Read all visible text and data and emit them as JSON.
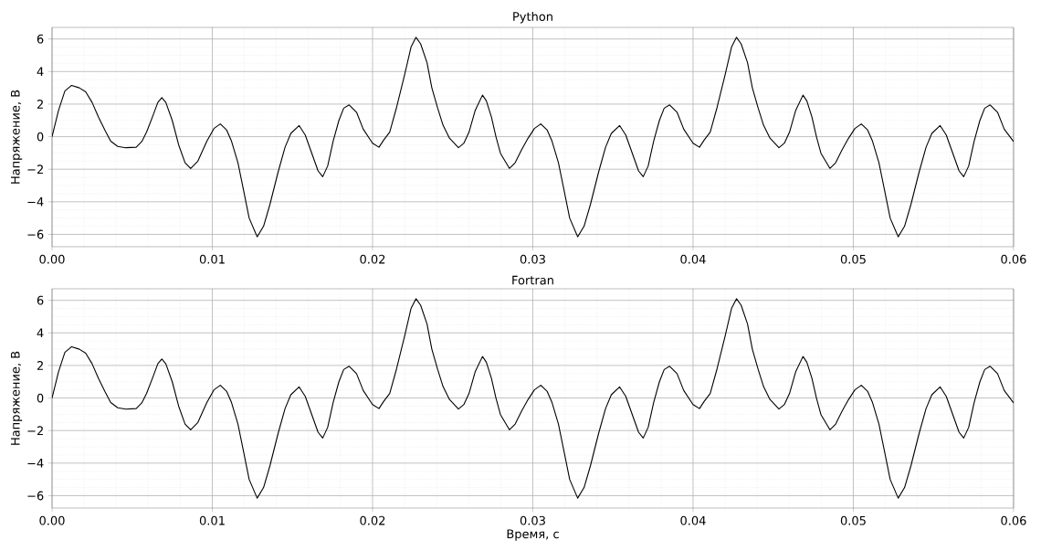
{
  "chart_data": [
    {
      "type": "line",
      "title": "Python",
      "ylabel": "Напряжение, В",
      "grid": true,
      "xlim": [
        0,
        0.06
      ],
      "ylim": [
        -6.76,
        6.71
      ],
      "xticks": [
        {
          "value": 0,
          "label": "0.00"
        },
        {
          "value": 0.01,
          "label": "0.01"
        },
        {
          "value": 0.02,
          "label": "0.02"
        },
        {
          "value": 0.03,
          "label": "0.03"
        },
        {
          "value": 0.04,
          "label": "0.04"
        },
        {
          "value": 0.05,
          "label": "0.05"
        },
        {
          "value": 0.06,
          "label": "0.06"
        }
      ],
      "yticks": [
        {
          "value": -6,
          "label": "−6"
        },
        {
          "value": -4,
          "label": "−4"
        },
        {
          "value": -2,
          "label": "−2"
        },
        0,
        2,
        4,
        6
      ],
      "series": [
        {
          "color": "#000000",
          "x": [
            0,
            0.0004,
            0.0008,
            0.00122,
            0.0017,
            0.0021,
            0.0025,
            0.0029,
            0.0033,
            0.00366,
            0.0041,
            0.0046,
            0.00525,
            0.0056,
            0.0059,
            0.0063,
            0.0066,
            0.00685,
            0.0071,
            0.0075,
            0.0079,
            0.0083,
            0.00865,
            0.0091,
            0.00966,
            0.0101,
            0.0105,
            0.0109,
            0.0112,
            0.0116,
            0.0119,
            0.0123,
            0.0128,
            0.0132,
            0.0136,
            0.0141,
            0.01454,
            0.0149,
            0.01542,
            0.0158,
            0.0162,
            0.0166,
            0.01689,
            0.0172,
            0.01754,
            0.0179,
            0.0182,
            0.01854,
            0.019,
            0.01942,
            0.02,
            0.0204,
            0.0207,
            0.02107,
            0.0215,
            0.022,
            0.0224,
            0.02271,
            0.023,
            0.0234,
            0.0237,
            0.02406,
            0.0244,
            0.0248,
            0.02536,
            0.0257,
            0.02602,
            0.0264,
            0.02686,
            0.0271,
            0.02742,
            0.0277,
            0.02798,
            0.02854,
            0.0289,
            0.02929,
            0.0297,
            0.0301,
            0.0305,
            0.0309,
            0.0312,
            0.0316,
            0.0319,
            0.0323,
            0.0328,
            0.0332,
            0.0336,
            0.0341,
            0.03454,
            0.0349,
            0.03542,
            0.0358,
            0.0362,
            0.0366,
            0.03689,
            0.0372,
            0.03754,
            0.0379,
            0.0382,
            0.03854,
            0.039,
            0.03942,
            0.04,
            0.0404,
            0.0407,
            0.04107,
            0.0415,
            0.042,
            0.0424,
            0.04271,
            0.043,
            0.0434,
            0.0437,
            0.04406,
            0.0444,
            0.0448,
            0.04536,
            0.0457,
            0.04602,
            0.0464,
            0.04686,
            0.0471,
            0.04742,
            0.0477,
            0.04798,
            0.04854,
            0.0489,
            0.04929,
            0.0497,
            0.0501,
            0.0505,
            0.0509,
            0.0512,
            0.0516,
            0.0519,
            0.0523,
            0.0528,
            0.0532,
            0.0536,
            0.0541,
            0.05454,
            0.0549,
            0.05542,
            0.0558,
            0.0562,
            0.0566,
            0.05689,
            0.0572,
            0.05754,
            0.0579,
            0.0582,
            0.05854,
            0.059,
            0.05942,
            0.06
          ],
          "values": [
            0,
            1.6,
            2.8,
            3.15,
            3.0,
            2.75,
            2.1,
            1.2,
            0.4,
            -0.28,
            -0.6,
            -0.68,
            -0.65,
            -0.3,
            0.28,
            1.3,
            2.1,
            2.4,
            2.1,
            1.0,
            -0.5,
            -1.6,
            -1.95,
            -1.5,
            -0.28,
            0.5,
            0.78,
            0.4,
            -0.28,
            -1.6,
            -3.05,
            -5.0,
            -6.15,
            -5.5,
            -4.15,
            -2.2,
            -0.65,
            0.2,
            0.68,
            0.1,
            -1.0,
            -2.1,
            -2.46,
            -1.8,
            -0.28,
            1.0,
            1.75,
            1.95,
            1.5,
            0.46,
            -0.4,
            -0.65,
            -0.2,
            0.28,
            1.8,
            3.8,
            5.5,
            6.1,
            5.7,
            4.54,
            3.0,
            1.76,
            0.7,
            -0.09,
            -0.68,
            -0.4,
            0.28,
            1.6,
            2.55,
            2.2,
            1.2,
            0.0,
            -1.02,
            -1.95,
            -1.6,
            -0.83,
            -0.1,
            0.5,
            0.78,
            0.4,
            -0.28,
            -1.6,
            -3.05,
            -5.0,
            -6.15,
            -5.5,
            -4.15,
            -2.2,
            -0.65,
            0.2,
            0.68,
            0.1,
            -1.0,
            -2.1,
            -2.46,
            -1.8,
            -0.28,
            1.0,
            1.75,
            1.95,
            1.5,
            0.46,
            -0.4,
            -0.65,
            -0.2,
            0.28,
            1.8,
            3.8,
            5.5,
            6.1,
            5.7,
            4.54,
            3.0,
            1.76,
            0.7,
            -0.09,
            -0.68,
            -0.4,
            0.28,
            1.6,
            2.55,
            2.2,
            1.2,
            0.0,
            -1.02,
            -1.95,
            -1.6,
            -0.83,
            -0.1,
            0.5,
            0.78,
            0.4,
            -0.28,
            -1.6,
            -3.05,
            -5.0,
            -6.15,
            -5.5,
            -4.15,
            -2.2,
            -0.65,
            0.2,
            0.68,
            0.1,
            -1.0,
            -2.1,
            -2.46,
            -1.8,
            -0.28,
            1.0,
            1.75,
            1.95,
            1.5,
            0.46,
            -0.3
          ]
        }
      ]
    },
    {
      "type": "line",
      "title": "Fortran",
      "xlabel": "Время, с",
      "ylabel": "Напряжение, В",
      "grid": true,
      "xlim": [
        0,
        0.06
      ],
      "ylim": [
        -6.76,
        6.71
      ],
      "xticks": [
        {
          "value": 0,
          "label": "0.00"
        },
        {
          "value": 0.01,
          "label": "0.01"
        },
        {
          "value": 0.02,
          "label": "0.02"
        },
        {
          "value": 0.03,
          "label": "0.03"
        },
        {
          "value": 0.04,
          "label": "0.04"
        },
        {
          "value": 0.05,
          "label": "0.05"
        },
        {
          "value": 0.06,
          "label": "0.06"
        }
      ],
      "yticks": [
        {
          "value": -6,
          "label": "−6"
        },
        {
          "value": -4,
          "label": "−4"
        },
        {
          "value": -2,
          "label": "−2"
        },
        0,
        2,
        4,
        6
      ],
      "series": [
        {
          "color": "#000000",
          "x": [
            0,
            0.0004,
            0.0008,
            0.00122,
            0.0017,
            0.0021,
            0.0025,
            0.0029,
            0.0033,
            0.00366,
            0.0041,
            0.0046,
            0.00525,
            0.0056,
            0.0059,
            0.0063,
            0.0066,
            0.00685,
            0.0071,
            0.0075,
            0.0079,
            0.0083,
            0.00865,
            0.0091,
            0.00966,
            0.0101,
            0.0105,
            0.0109,
            0.0112,
            0.0116,
            0.0119,
            0.0123,
            0.0128,
            0.0132,
            0.0136,
            0.0141,
            0.01454,
            0.0149,
            0.01542,
            0.0158,
            0.0162,
            0.0166,
            0.01689,
            0.0172,
            0.01754,
            0.0179,
            0.0182,
            0.01854,
            0.019,
            0.01942,
            0.02,
            0.0204,
            0.0207,
            0.02107,
            0.0215,
            0.022,
            0.0224,
            0.02271,
            0.023,
            0.0234,
            0.0237,
            0.02406,
            0.0244,
            0.0248,
            0.02536,
            0.0257,
            0.02602,
            0.0264,
            0.02686,
            0.0271,
            0.02742,
            0.0277,
            0.02798,
            0.02854,
            0.0289,
            0.02929,
            0.0297,
            0.0301,
            0.0305,
            0.0309,
            0.0312,
            0.0316,
            0.0319,
            0.0323,
            0.0328,
            0.0332,
            0.0336,
            0.0341,
            0.03454,
            0.0349,
            0.03542,
            0.0358,
            0.0362,
            0.0366,
            0.03689,
            0.0372,
            0.03754,
            0.0379,
            0.0382,
            0.03854,
            0.039,
            0.03942,
            0.04,
            0.0404,
            0.0407,
            0.04107,
            0.0415,
            0.042,
            0.0424,
            0.04271,
            0.043,
            0.0434,
            0.0437,
            0.04406,
            0.0444,
            0.0448,
            0.04536,
            0.0457,
            0.04602,
            0.0464,
            0.04686,
            0.0471,
            0.04742,
            0.0477,
            0.04798,
            0.04854,
            0.0489,
            0.04929,
            0.0497,
            0.0501,
            0.0505,
            0.0509,
            0.0512,
            0.0516,
            0.0519,
            0.0523,
            0.0528,
            0.0532,
            0.0536,
            0.0541,
            0.05454,
            0.0549,
            0.05542,
            0.0558,
            0.0562,
            0.0566,
            0.05689,
            0.0572,
            0.05754,
            0.0579,
            0.0582,
            0.05854,
            0.059,
            0.05942,
            0.06
          ],
          "values": [
            0,
            1.6,
            2.8,
            3.15,
            3.0,
            2.75,
            2.1,
            1.2,
            0.4,
            -0.28,
            -0.6,
            -0.68,
            -0.65,
            -0.3,
            0.28,
            1.3,
            2.1,
            2.4,
            2.1,
            1.0,
            -0.5,
            -1.6,
            -1.95,
            -1.5,
            -0.28,
            0.5,
            0.78,
            0.4,
            -0.28,
            -1.6,
            -3.05,
            -5.0,
            -6.15,
            -5.5,
            -4.15,
            -2.2,
            -0.65,
            0.2,
            0.68,
            0.1,
            -1.0,
            -2.1,
            -2.46,
            -1.8,
            -0.28,
            1.0,
            1.75,
            1.95,
            1.5,
            0.46,
            -0.4,
            -0.65,
            -0.2,
            0.28,
            1.8,
            3.8,
            5.5,
            6.1,
            5.7,
            4.54,
            3.0,
            1.76,
            0.7,
            -0.09,
            -0.68,
            -0.4,
            0.28,
            1.6,
            2.55,
            2.2,
            1.2,
            0.0,
            -1.02,
            -1.95,
            -1.6,
            -0.83,
            -0.1,
            0.5,
            0.78,
            0.4,
            -0.28,
            -1.6,
            -3.05,
            -5.0,
            -6.15,
            -5.5,
            -4.15,
            -2.2,
            -0.65,
            0.2,
            0.68,
            0.1,
            -1.0,
            -2.1,
            -2.46,
            -1.8,
            -0.28,
            1.0,
            1.75,
            1.95,
            1.5,
            0.46,
            -0.4,
            -0.65,
            -0.2,
            0.28,
            1.8,
            3.8,
            5.5,
            6.1,
            5.7,
            4.54,
            3.0,
            1.76,
            0.7,
            -0.09,
            -0.68,
            -0.4,
            0.28,
            1.6,
            2.55,
            2.2,
            1.2,
            0.0,
            -1.02,
            -1.95,
            -1.6,
            -0.83,
            -0.1,
            0.5,
            0.78,
            0.4,
            -0.28,
            -1.6,
            -3.05,
            -5.0,
            -6.15,
            -5.5,
            -4.15,
            -2.2,
            -0.65,
            0.2,
            0.68,
            0.1,
            -1.0,
            -2.1,
            -2.46,
            -1.8,
            -0.28,
            1.0,
            1.75,
            1.95,
            1.5,
            0.46,
            -0.3
          ]
        }
      ]
    }
  ]
}
